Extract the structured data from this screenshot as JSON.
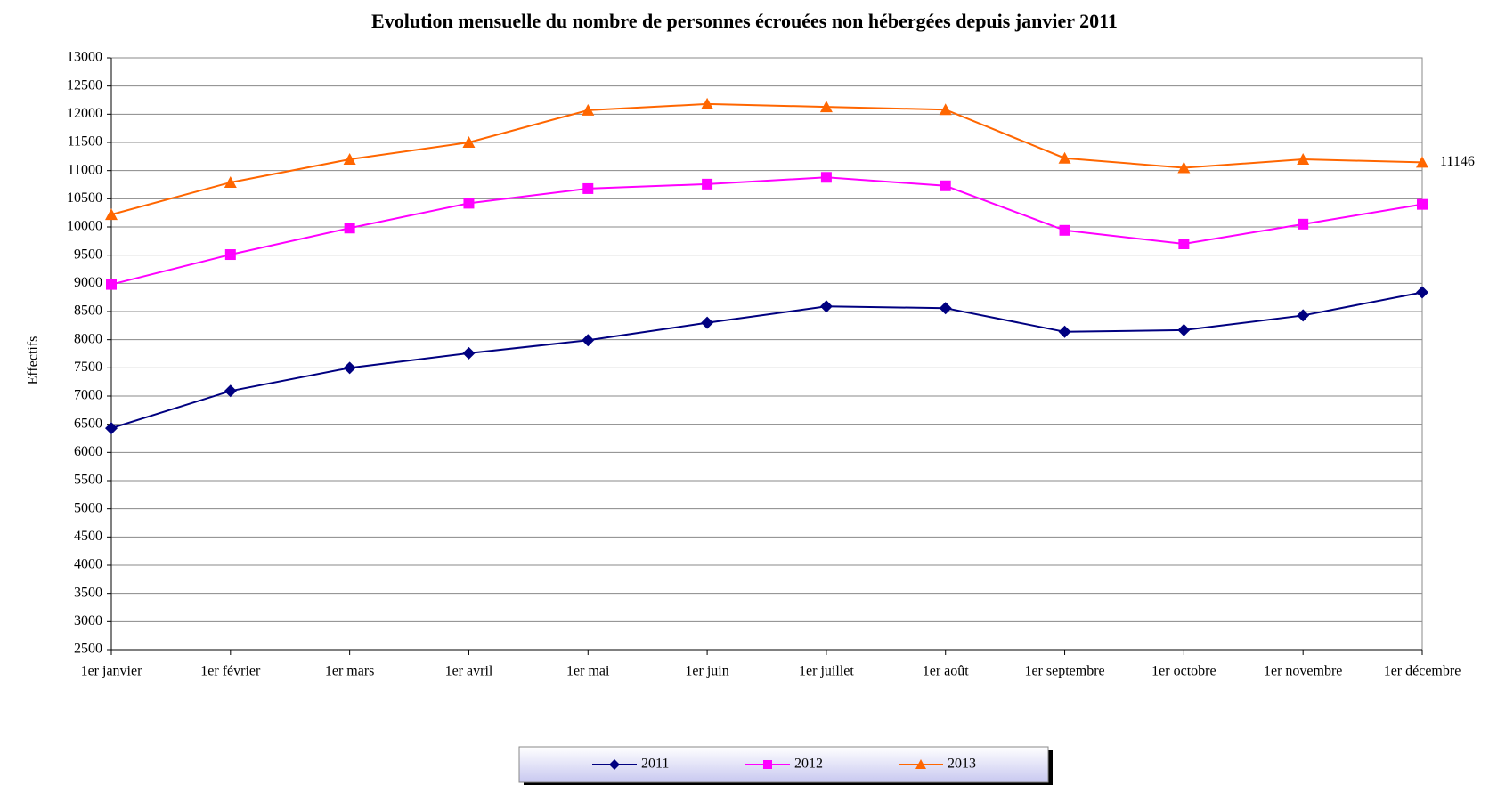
{
  "chart_data": {
    "type": "line",
    "title": "Evolution mensuelle du nombre de personnes écrouées non hébergées depuis janvier 2011",
    "y_label": "Effectifs",
    "categories": [
      "1er janvier",
      "1er février",
      "1er mars",
      "1er avril",
      "1er mai",
      "1er juin",
      "1er juillet",
      "1er août",
      "1er septembre",
      "1er octobre",
      "1er novembre",
      "1er décembre"
    ],
    "series": [
      {
        "name": "2011",
        "color": "#000080",
        "marker": "diamond",
        "values": [
          6430,
          7090,
          7500,
          7760,
          7990,
          8300,
          8590,
          8560,
          8140,
          8170,
          8430,
          8840
        ]
      },
      {
        "name": "2012",
        "color": "#ff00ff",
        "marker": "square",
        "values": [
          8980,
          9510,
          9980,
          10420,
          10680,
          10760,
          10880,
          10730,
          9940,
          9700,
          10050,
          10400
        ]
      },
      {
        "name": "2013",
        "color": "#ff6600",
        "marker": "triangle",
        "values": [
          10220,
          10790,
          11200,
          11500,
          12070,
          12180,
          12130,
          12080,
          11220,
          11050,
          11200,
          11146
        ],
        "labeled_points": [
          11
        ]
      }
    ],
    "ylim": [
      2500,
      13000
    ],
    "yticks": [
      2500,
      3000,
      3500,
      4000,
      4500,
      5000,
      5500,
      6000,
      6500,
      7000,
      7500,
      8000,
      8500,
      9000,
      9500,
      10000,
      10500,
      11000,
      11500,
      12000,
      12500,
      13000
    ],
    "grid": true,
    "legend": "bottom"
  }
}
